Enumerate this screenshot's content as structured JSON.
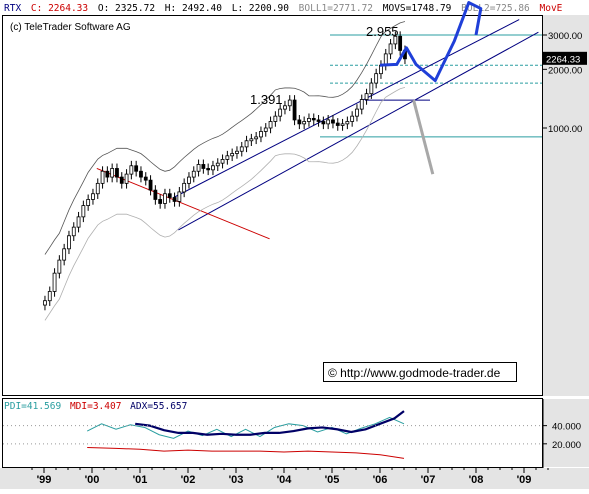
{
  "header": {
    "symbol": "RTX",
    "close": "C: 2264.33",
    "open": "O: 2325.72",
    "high": "H: 2492.40",
    "low": "L: 2200.90",
    "boll1": "BOLL1=2771.72",
    "movs": "MOVS=1748.79",
    "boll2": "BOLL2=725.86",
    "move": "MovE"
  },
  "copyright": "(c) TeleTrader Software AG",
  "watermark": "© http://www.godmode-trader.de",
  "annotations": {
    "peak_high": "2.955",
    "peak_2004": "1.391"
  },
  "price_axis": {
    "ticks": [
      {
        "label": "3000.00",
        "value": 3000
      },
      {
        "label": "2000.00",
        "value": 2000
      },
      {
        "label": "1000.00",
        "value": 1000
      }
    ],
    "last_price_label": "2264.33",
    "last_price": 2264.33
  },
  "indicator": {
    "pdi_label": "PDI=41.569",
    "mdi_label": "MDI=3.407",
    "adx_label": "ADX=55.657",
    "ticks": [
      {
        "label": "40.000",
        "value": 40
      },
      {
        "label": "20.000",
        "value": 20
      }
    ]
  },
  "x_axis": {
    "labels": [
      "'99",
      "'00",
      "'01",
      "'02",
      "'03",
      "'04",
      "'05",
      "'06",
      "'07",
      "'08",
      "'09"
    ]
  },
  "colors": {
    "header_symbol": "#000080",
    "header_close": "#cc0000",
    "header_ohlc": "#000000",
    "header_boll": "#888888",
    "header_movs": "#000000",
    "header_move": "#cc0000",
    "channel": "#000080",
    "projection": "#1f3fd8",
    "teal_lines": "#2a9ea0",
    "red_trendline": "#cc0000",
    "bollinger": "#b0b0b0",
    "grey_arrow": "#a8a8a8",
    "pdi": "#2a9ea0",
    "mdi": "#cc0000",
    "adx": "#000066",
    "axis_bg": "#e4e4e4"
  },
  "chart_data": [
    {
      "type": "line",
      "title": "RTX",
      "scale": "log",
      "ylim": [
        90,
        4500
      ],
      "x_range": [
        1998.5,
        2009.6
      ],
      "series": [
        {
          "name": "RTX",
          "style": "candlestick",
          "x": [
            1999.02,
            1999.12,
            1999.22,
            1999.32,
            1999.42,
            1999.52,
            1999.62,
            1999.72,
            1999.82,
            1999.92,
            2000.02,
            2000.12,
            2000.22,
            2000.32,
            2000.42,
            2000.52,
            2000.62,
            2000.72,
            2000.82,
            2000.92,
            2001.02,
            2001.12,
            2001.22,
            2001.32,
            2001.42,
            2001.52,
            2001.62,
            2001.72,
            2001.82,
            2001.92,
            2002.02,
            2002.12,
            2002.22,
            2002.32,
            2002.42,
            2002.52,
            2002.62,
            2002.72,
            2002.82,
            2002.92,
            2003.02,
            2003.12,
            2003.22,
            2003.32,
            2003.42,
            2003.52,
            2003.62,
            2003.72,
            2003.82,
            2003.92,
            2004.02,
            2004.12,
            2004.22,
            2004.32,
            2004.42,
            2004.52,
            2004.62,
            2004.72,
            2004.82,
            2004.92,
            2005.02,
            2005.12,
            2005.22,
            2005.32,
            2005.42,
            2005.52,
            2005.62,
            2005.72,
            2005.82,
            2005.92,
            2006.02,
            2006.12,
            2006.22,
            2006.32,
            2006.42,
            2006.52
          ],
          "values": [
            130,
            145,
            180,
            210,
            240,
            280,
            310,
            350,
            400,
            430,
            460,
            520,
            600,
            560,
            620,
            560,
            520,
            580,
            640,
            600,
            560,
            540,
            480,
            430,
            410,
            460,
            440,
            420,
            470,
            520,
            560,
            600,
            650,
            620,
            610,
            640,
            660,
            690,
            720,
            740,
            760,
            800,
            860,
            880,
            900,
            960,
            1000,
            1080,
            1150,
            1250,
            1300,
            1391,
            1100,
            1050,
            1080,
            1120,
            1100,
            1080,
            1050,
            1100,
            1060,
            1030,
            1050,
            1080,
            1150,
            1250,
            1400,
            1500,
            1700,
            1900,
            2100,
            2400,
            2700,
            2955,
            2500,
            2264.33
          ]
        },
        {
          "name": "Projection",
          "x": [
            2006.0,
            2006.35,
            2006.55,
            2006.75,
            2007.15,
            2007.55,
            2007.85,
            2008.1,
            2008.0
          ],
          "values": [
            2100,
            2120,
            2580,
            2120,
            1750,
            2800,
            4400,
            4100,
            3000
          ]
        }
      ]
    },
    {
      "type": "line",
      "title": "ADX",
      "ylim": [
        0,
        55
      ],
      "x_range": [
        1998.5,
        2009.6
      ],
      "series": [
        {
          "name": "PDI=41.569",
          "x": [
            1999.9,
            2000.2,
            2000.5,
            2000.8,
            2001.1,
            2001.4,
            2001.7,
            2002.0,
            2002.3,
            2002.6,
            2002.9,
            2003.2,
            2003.5,
            2003.8,
            2004.1,
            2004.4,
            2004.7,
            2005.0,
            2005.3,
            2005.6,
            2005.9,
            2006.2,
            2006.5
          ],
          "values": [
            34,
            42,
            36,
            41,
            38,
            30,
            26,
            34,
            29,
            36,
            28,
            36,
            28,
            38,
            42,
            40,
            33,
            38,
            31,
            37,
            42,
            49,
            42
          ]
        },
        {
          "name": "MDI=3.407",
          "x": [
            1999.9,
            2000.5,
            2001.0,
            2001.5,
            2002.0,
            2002.5,
            2003.0,
            2003.5,
            2004.0,
            2004.5,
            2005.0,
            2005.5,
            2006.0,
            2006.5
          ],
          "values": [
            16,
            15,
            14,
            12,
            13,
            12,
            12,
            12,
            11,
            12,
            11,
            10,
            8,
            4
          ]
        },
        {
          "name": "ADX=55.657",
          "x": [
            2000.9,
            2001.2,
            2001.5,
            2001.8,
            2002.1,
            2002.4,
            2002.7,
            2003.0,
            2003.3,
            2003.6,
            2003.9,
            2004.2,
            2004.5,
            2004.8,
            2005.1,
            2005.4,
            2005.7,
            2006.0,
            2006.3,
            2006.5
          ],
          "values": [
            42,
            40,
            35,
            32,
            32,
            30,
            31,
            30,
            30,
            32,
            32,
            34,
            37,
            38,
            36,
            33,
            36,
            42,
            48,
            56
          ]
        }
      ]
    }
  ]
}
